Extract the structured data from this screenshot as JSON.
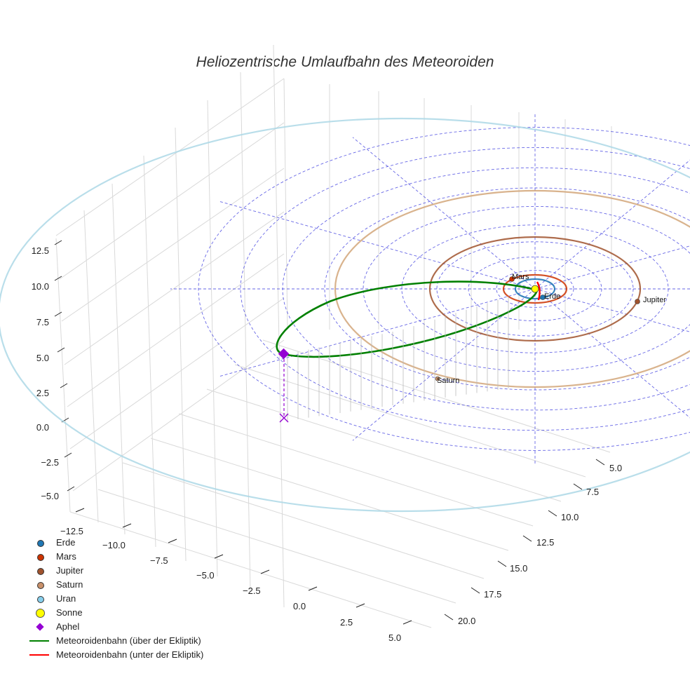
{
  "chart_data": {
    "type": "3d-orbit",
    "title": "Heliozentrische Umlaufbahn des Meteoroiden",
    "x_ticks": [
      "−12.5",
      "−10.0",
      "−7.5",
      "−5.0",
      "−2.5",
      "0.0",
      "2.5",
      "5.0"
    ],
    "y_ticks": [
      "5.0",
      "7.5",
      "10.0",
      "12.5",
      "15.0",
      "17.5",
      "20.0"
    ],
    "z_ticks": [
      "12.5",
      "10.0",
      "7.5",
      "5.0",
      "2.5",
      "0.0",
      "−2.5",
      "−5.0"
    ],
    "xlim": [
      -12.5,
      5.0
    ],
    "ylim": [
      5.0,
      20.0
    ],
    "zlim": [
      -5.0,
      12.5
    ],
    "planet_labels": [
      "Mars",
      "Erde",
      "Jupiter",
      "Saturn"
    ],
    "planets": [
      {
        "name": "Erde",
        "orbit_radius_au": 1.0,
        "color": "#1f77b4"
      },
      {
        "name": "Mars",
        "orbit_radius_au": 1.52,
        "color": "#cc3300"
      },
      {
        "name": "Jupiter",
        "orbit_radius_au": 5.2,
        "color": "#a0522d"
      },
      {
        "name": "Saturn",
        "orbit_radius_au": 9.5,
        "color": "#d2a679"
      },
      {
        "name": "Uran",
        "orbit_radius_au": 19.2,
        "color": "#add8e6"
      }
    ],
    "meteoroid": {
      "aphel_label": "Aphel",
      "color_above": "#008000",
      "color_below": "#ff0000"
    },
    "legend": [
      {
        "label": "Erde",
        "kind": "dot",
        "color": "#1f77b4"
      },
      {
        "label": "Mars",
        "kind": "dot",
        "color": "#cc3300"
      },
      {
        "label": "Jupiter",
        "kind": "dot",
        "color": "#a0522d"
      },
      {
        "label": "Saturn",
        "kind": "dot",
        "color": "#c8906a"
      },
      {
        "label": "Uran",
        "kind": "dot",
        "color": "#87ceeb"
      },
      {
        "label": "Sonne",
        "kind": "sun",
        "color": "#ffff00"
      },
      {
        "label": "Aphel",
        "kind": "diamond",
        "color": "#9400d3"
      },
      {
        "label": "Meteoroidenbahn (über der Ekliptik)",
        "kind": "line",
        "color": "#008000"
      },
      {
        "label": "Meteoroidenbahn (unter der Ekliptik)",
        "kind": "line",
        "color": "#ff0000"
      }
    ]
  }
}
